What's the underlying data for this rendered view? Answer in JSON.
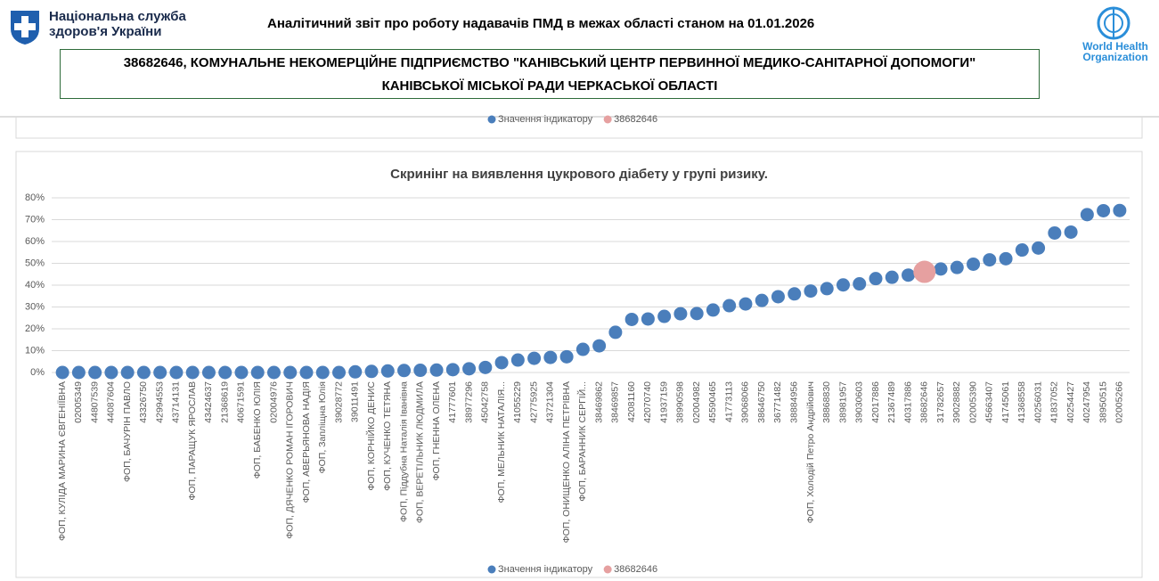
{
  "header": {
    "org_name": [
      "Національна служба",
      "здоров'я України"
    ],
    "title": "Аналітичний звіт про роботу надавачів ПМД в межах області станом на 01.01.2026",
    "provider": [
      "38682646, КОМУНАЛЬНЕ НЕКОМЕРЦІЙНЕ ПІДПРИЄМСТВО \"КАНІВСЬКИЙ ЦЕНТР ПЕРВИННОЇ МЕДИКО-САНІТАРНОЇ ДОПОМОГИ\"",
      "КАНІВСЬКОЇ МІСЬКОЇ РАДИ ЧЕРКАСЬКОЇ ОБЛАСТІ"
    ],
    "who": [
      "World Health",
      "Organization"
    ]
  },
  "previous_chart": {
    "legend": [
      "Значення індикатору",
      "38682646"
    ]
  },
  "chart_data": {
    "type": "scatter",
    "title": "Скринінг на виявлення цукрового діабету у групі ризику.",
    "categories": [
      "ФОП, КУЛІДА МАРИНА ЄВГЕНІЇВНА",
      "02005349",
      "44807539",
      "44087604",
      "ФОП, БАЧУРІН ПАВЛО",
      "43326750",
      "42994553",
      "43714131",
      "ФОП, ПАРАЩУК ЯРОСЛАВ",
      "43424637",
      "21368619",
      "40671591",
      "ФОП, БАБЕНКО ЮЛІЯ",
      "02004976",
      "ФОП, ДЯЧЕНКО РОМАН ІГОРОВИЧ",
      "ФОП, АВЕРЬЯНОВА НАДІЯ",
      "ФОП, Запліщна Юлія",
      "39028772",
      "39011491",
      "ФОП, КОРНІЙКО ДЕНИС",
      "ФОП, КУЧЕНКО ТЕТЯНА",
      "ФОП, Піддубна Наталія Іванівна",
      "ФОП, ВЕРЕТІЛЬНИК ЛЮДМИЛА",
      "ФОП, ГНЕННА ОЛЕНА",
      "41777601",
      "38977296",
      "45042758",
      "ФОП, МЕЛЬНИК НАТАЛІЯ...",
      "41055229",
      "42775925",
      "43721304",
      "ФОП, ОНИЩЕНКО АЛІНА ПЕТРІВНА",
      "ФОП, БАРАННИК СЕРГІЙ...",
      "38469862",
      "38469857",
      "42081160",
      "42070740",
      "41937159",
      "38990598",
      "02004982",
      "45590465",
      "41773113",
      "39068066",
      "38646750",
      "36771482",
      "38884956",
      "ФОП, Холодій Петро Андрійович",
      "38868830",
      "38981957",
      "39030603",
      "42017886",
      "21367489",
      "40317886",
      "38682646",
      "31782657",
      "39028882",
      "02005390",
      "45663407",
      "41745061",
      "41368558",
      "40256031",
      "41837052",
      "40254427",
      "40247954",
      "38950515",
      "02005266"
    ],
    "series": [
      {
        "name": "Значення індикатору",
        "color": "#4a7ebb",
        "values": [
          0,
          0,
          0,
          0,
          0,
          0,
          0,
          0,
          0,
          0,
          0,
          0,
          0,
          0,
          0,
          0,
          0,
          0,
          0.3,
          0.5,
          0.7,
          0.9,
          1.0,
          1.1,
          1.3,
          1.7,
          2.3,
          4.5,
          5.7,
          6.5,
          6.9,
          7.2,
          10.6,
          12.2,
          18.4,
          24.3,
          24.5,
          25.7,
          26.9,
          27.0,
          28.6,
          30.6,
          31.4,
          33.0,
          34.7,
          36.0,
          37.3,
          38.4,
          40.1,
          40.6,
          43.0,
          43.6,
          44.6,
          null,
          47.4,
          48.1,
          49.6,
          51.6,
          52.1,
          56.1,
          57.0,
          63.9,
          64.3,
          72.3,
          74.1,
          74.2
        ]
      },
      {
        "name": "38682646",
        "color": "#e6a0a0",
        "values": [
          null,
          null,
          null,
          null,
          null,
          null,
          null,
          null,
          null,
          null,
          null,
          null,
          null,
          null,
          null,
          null,
          null,
          null,
          null,
          null,
          null,
          null,
          null,
          null,
          null,
          null,
          null,
          null,
          null,
          null,
          null,
          null,
          null,
          null,
          null,
          null,
          null,
          null,
          null,
          null,
          null,
          null,
          null,
          null,
          null,
          null,
          null,
          null,
          null,
          null,
          null,
          null,
          null,
          46.1,
          null,
          null,
          null,
          null,
          null,
          null,
          null,
          null,
          null,
          null,
          null,
          null
        ]
      }
    ],
    "ylim": [
      0,
      80
    ],
    "yticks": [
      {
        "value": 0,
        "label": "0%"
      },
      {
        "value": 10,
        "label": "10%"
      },
      {
        "value": 20,
        "label": "20%"
      },
      {
        "value": 30,
        "label": "30%"
      },
      {
        "value": 40,
        "label": "40%"
      },
      {
        "value": 50,
        "label": "50%"
      },
      {
        "value": 60,
        "label": "60%"
      },
      {
        "value": 70,
        "label": "70%"
      },
      {
        "value": 80,
        "label": "80%"
      }
    ],
    "grid": true,
    "legend": "bottom"
  }
}
